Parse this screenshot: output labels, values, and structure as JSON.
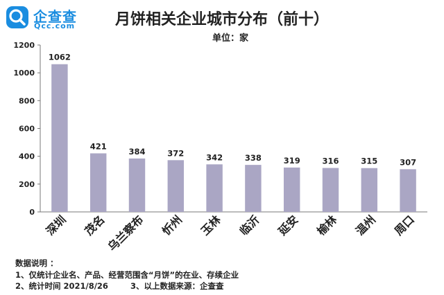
{
  "brand": {
    "name": "企查查",
    "domain": "Qcc.com",
    "color": "#1a8de0",
    "icon": "magnifier-logo-icon"
  },
  "header": {
    "title": "月饼相关企业城市分布（前十）",
    "unit": "单位：家"
  },
  "chart_data": {
    "type": "bar",
    "title": "月饼相关企业城市分布（前十）",
    "xlabel": "",
    "ylabel": "",
    "unit": "单位：家",
    "ylim": [
      0,
      1200
    ],
    "yticks": [
      0,
      200,
      400,
      600,
      800,
      1000,
      1200
    ],
    "categories": [
      "深圳",
      "茂名",
      "乌兰察布",
      "忻州",
      "玉林",
      "临沂",
      "延安",
      "榆林",
      "温州",
      "周口"
    ],
    "values": [
      1062,
      421,
      384,
      372,
      342,
      338,
      319,
      316,
      315,
      307
    ],
    "bar_color": "#aaa6c4",
    "grid": false,
    "legend": "none"
  },
  "notes": {
    "heading": "数据说明 ：",
    "line1": "1、仅统计企业名、产品、经营范围含“月饼”的在业、存续企业",
    "line2": "2、统计时间 2021/8/26        3、以上数据来源：企查查"
  }
}
